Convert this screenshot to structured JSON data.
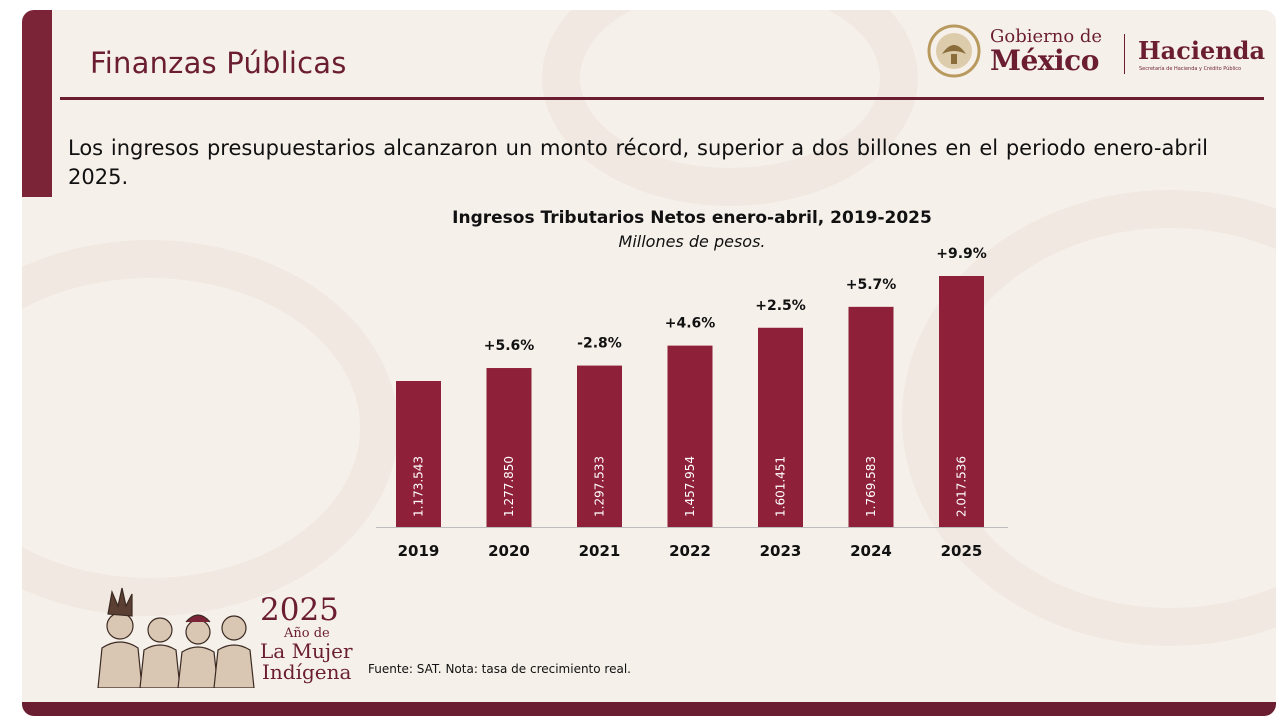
{
  "header": {
    "title": "Finanzas Públicas",
    "logo_gobierno_de": "Gobierno de",
    "logo_mexico": "México",
    "logo_hacienda": "Hacienda",
    "logo_hacienda_sub": "Secretaría de Hacienda y Crédito Público"
  },
  "lead_text": "Los ingresos presupuestarios alcanzaron un monto récord, superior a dos billones en el periodo enero-abril 2025.",
  "chart_data": {
    "type": "bar",
    "title": "Ingresos Tributarios Netos enero-abril, 2019-2025",
    "subtitle": "Millones de pesos.",
    "categories": [
      "2019",
      "2020",
      "2021",
      "2022",
      "2023",
      "2024",
      "2025"
    ],
    "values": [
      1173543,
      1277850,
      1297533,
      1457954,
      1601451,
      1769583,
      2017536
    ],
    "value_labels": [
      "1.173.543",
      "1.277.850",
      "1.297.533",
      "1.457.954",
      "1.601.451",
      "1.769.583",
      "2.017.536"
    ],
    "growth_labels": [
      "",
      "+5.6%",
      "-2.8%",
      "+4.6%",
      "+2.5%",
      "+5.7%",
      "+9.9%"
    ],
    "ylim": [
      0,
      2017536
    ],
    "grid": false,
    "bar_color": "#8e2039"
  },
  "footer": {
    "year": "2025",
    "ano_de": "Año de",
    "la_mujer": "La Mujer",
    "indigena": "Indígena",
    "source": "Fuente: SAT. Nota: tasa de crecimiento real."
  },
  "colors": {
    "accent": "#6b1e32",
    "background": "#f6f0ea"
  }
}
